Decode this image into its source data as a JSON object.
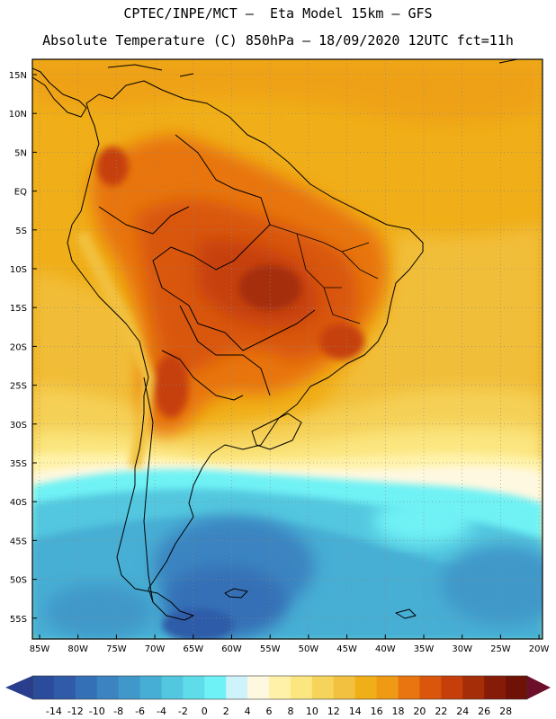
{
  "header": {
    "line1": "CPTEC/INPE/MCT –  Eta Model 15km – GFS",
    "line2": "Absolute Temperature (C) 850hPa – 18/09/2020 12UTC fct=11h"
  },
  "axes": {
    "lat_labels": [
      "15N",
      "10N",
      "5N",
      "EQ",
      "5S",
      "10S",
      "15S",
      "20S",
      "25S",
      "30S",
      "35S",
      "40S",
      "45S",
      "50S",
      "55S"
    ],
    "lon_labels": [
      "85W",
      "80W",
      "75W",
      "70W",
      "65W",
      "60W",
      "55W",
      "50W",
      "45W",
      "40W",
      "35W",
      "30W",
      "25W",
      "20W"
    ],
    "gridlines": "dotted"
  },
  "colorbar": {
    "labels": [
      "-14",
      "-12",
      "-10",
      "-8",
      "-6",
      "-4",
      "-2",
      "0",
      "2",
      "4",
      "6",
      "8",
      "10",
      "12",
      "14",
      "16",
      "18",
      "20",
      "22",
      "24",
      "26",
      "28"
    ],
    "colors": [
      "#2b4c9b",
      "#2f5ba8",
      "#3470b6",
      "#3b84c1",
      "#3f98c9",
      "#46aed4",
      "#52c7df",
      "#5fdcea",
      "#6ff2f5",
      "#cef3fa",
      "#fff8e0",
      "#fff2a8",
      "#fbe680",
      "#f6d35a",
      "#f2c13f",
      "#f0ae18",
      "#ee9a14",
      "#e8750f",
      "#d9560c",
      "#c63f0a",
      "#a52d08",
      "#861c07",
      "#6e1208"
    ],
    "arrow_left_color": "#2a3e8e",
    "arrow_right_color": "#6c0f2a"
  },
  "fields": {
    "ocean_tropical_color": "#f0ae18",
    "continent_hot_color": "#c0480c",
    "cold_pool_color": "#46aed4"
  }
}
